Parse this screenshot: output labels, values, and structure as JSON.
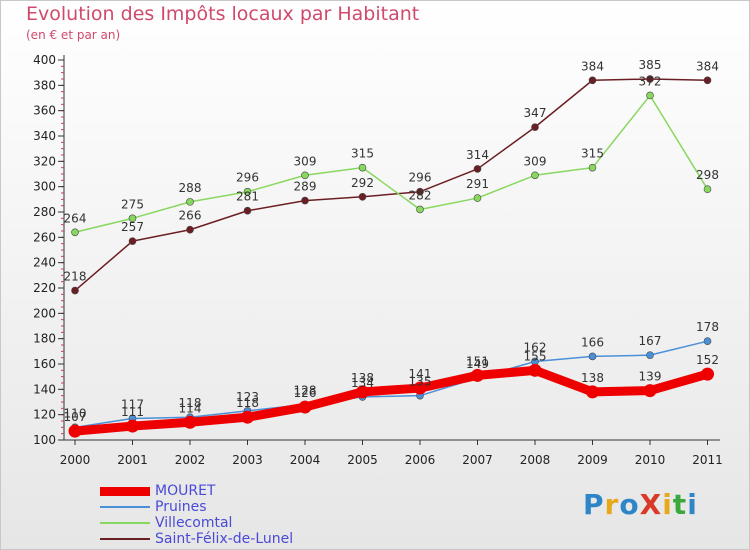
{
  "title": "Evolution des Impôts locaux par Habitant",
  "subtitle": "(en € et par an)",
  "logo": {
    "text": "ProXiti",
    "colors": [
      "#2e86c8",
      "#e8a81e",
      "#2e86c8",
      "#d83a2a",
      "#e8a81e",
      "#3aa83a",
      "#2e86c8"
    ]
  },
  "chart_data": {
    "type": "line",
    "x": [
      "2000",
      "2001",
      "2002",
      "2003",
      "2004",
      "2005",
      "2006",
      "2007",
      "2008",
      "2009",
      "2010",
      "2011"
    ],
    "ylim": [
      100,
      400
    ],
    "yticks": [
      "100",
      "120",
      "140",
      "160",
      "180",
      "200",
      "220",
      "240",
      "260",
      "280",
      "300",
      "320",
      "340",
      "360",
      "380",
      "400"
    ],
    "grid": false,
    "legend_placement": "bottom-left",
    "series": [
      {
        "name": "MOURET",
        "color": "#ee0000",
        "values": [
          107,
          111,
          114,
          118,
          126,
          138,
          141,
          151,
          155,
          138,
          139,
          152
        ],
        "labels": [
          "107",
          "111",
          "114",
          "118",
          "126",
          "138",
          "141",
          "151",
          "155",
          "138",
          "139",
          "152"
        ]
      },
      {
        "name": "Pruines",
        "color": "#4a90d9",
        "values": [
          110,
          117,
          118,
          123,
          128,
          134,
          135,
          149,
          162,
          166,
          167,
          178
        ],
        "labels": [
          "110",
          "117",
          "118",
          "123",
          "128",
          "134",
          "135",
          "149",
          "162",
          "166",
          "167",
          "178"
        ]
      },
      {
        "name": "Villecomtal",
        "color": "#88d860",
        "values": [
          264,
          275,
          288,
          296,
          309,
          315,
          282,
          291,
          309,
          315,
          372,
          298
        ],
        "labels": [
          "264",
          "275",
          "288",
          "296",
          "309",
          "315",
          "282",
          "291",
          "309",
          "315",
          "372",
          "298"
        ]
      },
      {
        "name": "Saint-Félix-de-Lunel",
        "color": "#6b1f24",
        "values": [
          218,
          257,
          266,
          281,
          289,
          292,
          296,
          314,
          347,
          384,
          385,
          384
        ],
        "labels": [
          "218",
          "257",
          "266",
          "281",
          "289",
          "292",
          "296",
          "314",
          "347",
          "384",
          "385",
          "384"
        ]
      }
    ]
  }
}
